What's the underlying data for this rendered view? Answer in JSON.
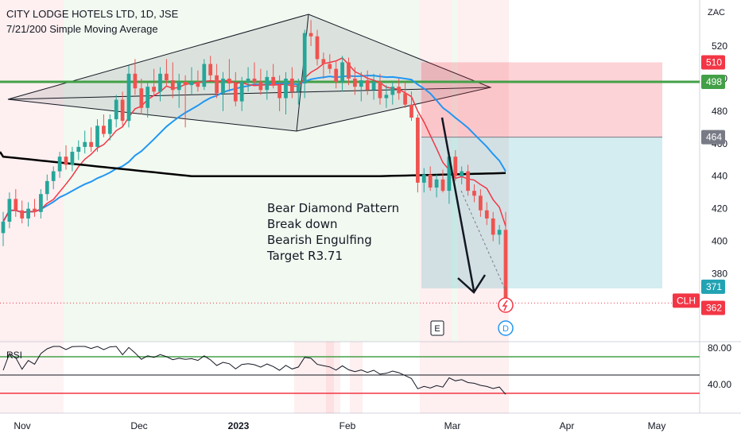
{
  "header": {
    "title": "CITY LODGE HOTELS LTD, 1D, JSE",
    "indicator": "7/21/200 Simple Moving Average",
    "currency": "ZAC"
  },
  "annotation": {
    "lines": [
      "Bear Diamond Pattern",
      "Break down",
      "Bearish Engulfing",
      "Target R3.71"
    ]
  },
  "markers": {
    "earnings": "E",
    "dividend": "D"
  },
  "rsi": {
    "label": "RSI",
    "upper": 80,
    "lower": 40,
    "ticks": [
      "80.00",
      "40.00"
    ]
  },
  "chart_data": {
    "type": "candlestick",
    "title": "CITY LODGE HOTELS LTD, 1D, JSE",
    "ylim": [
      360,
      535
    ],
    "y_ticks": [
      380,
      400,
      420,
      440,
      460,
      480,
      500,
      520
    ],
    "x_ticks": [
      "Nov",
      "Dec",
      "2023",
      "Feb",
      "Mar",
      "Apr",
      "May"
    ],
    "price_labels": [
      {
        "text": "510",
        "value": 510,
        "color": "#f23645"
      },
      {
        "text": "498",
        "value": 498,
        "color": "#43a047"
      },
      {
        "text": "464",
        "value": 464,
        "color": "#787b86"
      },
      {
        "text": "371",
        "value": 371,
        "color": "#22a3b3"
      },
      {
        "text": "CLH",
        "value": 362,
        "color": "#f23645"
      },
      {
        "text": "362",
        "value": 362,
        "color": "#f23645"
      }
    ],
    "levels": {
      "resistance": 498,
      "stop": 510,
      "entry": 464,
      "target": 371,
      "last": 362
    },
    "candles": [
      [
        405,
        418,
        397,
        412
      ],
      [
        412,
        430,
        408,
        426
      ],
      [
        426,
        432,
        415,
        419
      ],
      [
        419,
        425,
        411,
        414
      ],
      [
        414,
        424,
        409,
        420
      ],
      [
        420,
        426,
        415,
        418
      ],
      [
        418,
        432,
        414,
        429
      ],
      [
        429,
        441,
        425,
        437
      ],
      [
        437,
        446,
        432,
        443
      ],
      [
        443,
        455,
        439,
        452
      ],
      [
        452,
        459,
        444,
        447
      ],
      [
        447,
        458,
        443,
        455
      ],
      [
        455,
        462,
        450,
        458
      ],
      [
        458,
        468,
        454,
        461
      ],
      [
        461,
        470,
        455,
        458
      ],
      [
        458,
        475,
        455,
        471
      ],
      [
        471,
        478,
        464,
        466
      ],
      [
        466,
        478,
        462,
        475
      ],
      [
        475,
        490,
        470,
        487
      ],
      [
        487,
        492,
        470,
        474
      ],
      [
        474,
        508,
        470,
        503
      ],
      [
        503,
        512,
        490,
        494
      ],
      [
        494,
        500,
        478,
        482
      ],
      [
        482,
        498,
        476,
        495
      ],
      [
        495,
        506,
        490,
        492
      ],
      [
        492,
        507,
        486,
        503
      ],
      [
        503,
        512,
        495,
        499
      ],
      [
        499,
        510,
        488,
        493
      ],
      [
        493,
        503,
        482,
        498
      ],
      [
        498,
        502,
        470,
        496
      ],
      [
        496,
        507,
        490,
        498
      ],
      [
        498,
        505,
        492,
        495
      ],
      [
        495,
        512,
        493,
        509
      ],
      [
        509,
        514,
        499,
        502
      ],
      [
        502,
        509,
        488,
        491
      ],
      [
        491,
        504,
        480,
        500
      ],
      [
        500,
        512,
        492,
        497
      ],
      [
        497,
        504,
        483,
        486
      ],
      [
        486,
        501,
        480,
        498
      ],
      [
        498,
        507,
        492,
        500
      ],
      [
        500,
        510,
        496,
        498
      ],
      [
        498,
        506,
        490,
        493
      ],
      [
        493,
        505,
        487,
        501
      ],
      [
        501,
        509,
        494,
        496
      ],
      [
        496,
        502,
        480,
        488
      ],
      [
        488,
        504,
        478,
        500
      ],
      [
        500,
        507,
        488,
        492
      ],
      [
        492,
        500,
        484,
        497
      ],
      [
        497,
        530,
        488,
        528
      ],
      [
        528,
        536,
        520,
        526
      ],
      [
        526,
        530,
        508,
        512
      ],
      [
        512,
        516,
        500,
        509
      ],
      [
        509,
        515,
        503,
        506
      ],
      [
        506,
        511,
        494,
        498
      ],
      [
        498,
        514,
        492,
        510
      ],
      [
        510,
        513,
        496,
        500
      ],
      [
        500,
        507,
        490,
        495
      ],
      [
        495,
        504,
        486,
        499
      ],
      [
        499,
        505,
        490,
        493
      ],
      [
        493,
        503,
        487,
        498
      ],
      [
        498,
        503,
        484,
        488
      ],
      [
        488,
        496,
        482,
        490
      ],
      [
        490,
        498,
        484,
        495
      ],
      [
        495,
        500,
        487,
        491
      ],
      [
        491,
        498,
        482,
        484
      ],
      [
        484,
        492,
        474,
        476
      ],
      [
        476,
        478,
        430,
        436
      ],
      [
        436,
        445,
        430,
        441
      ],
      [
        441,
        446,
        431,
        433
      ],
      [
        433,
        441,
        427,
        438
      ],
      [
        438,
        444,
        430,
        431
      ],
      [
        431,
        455,
        423,
        452
      ],
      [
        452,
        456,
        437,
        440
      ],
      [
        440,
        446,
        435,
        443
      ],
      [
        443,
        447,
        428,
        431
      ],
      [
        431,
        435,
        424,
        428
      ],
      [
        428,
        432,
        415,
        419
      ],
      [
        419,
        424,
        410,
        414
      ],
      [
        414,
        418,
        400,
        404
      ],
      [
        404,
        410,
        398,
        407
      ],
      [
        407,
        418,
        362,
        362
      ]
    ],
    "sma": {
      "periods": [
        7,
        21,
        200
      ],
      "colors": [
        "#f23645",
        "#2196f3",
        "#000000"
      ]
    }
  }
}
